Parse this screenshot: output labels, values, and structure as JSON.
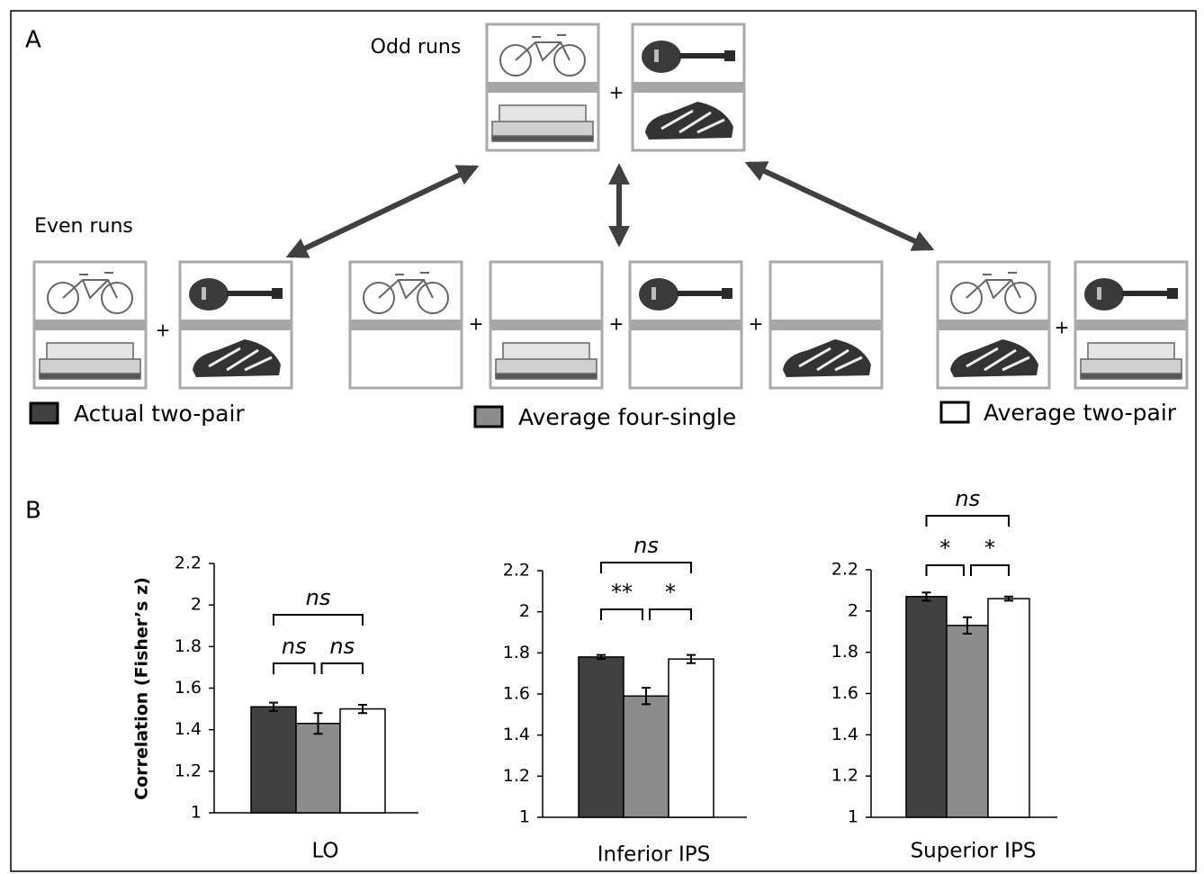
{
  "panel_a": {
    "label": "A",
    "odd_runs": "Odd runs",
    "even_runs": "Even runs",
    "plus_sign": "+"
  },
  "panel_b": {
    "label": "B"
  },
  "chart_data": [
    {
      "type": "bar",
      "title": "LO",
      "ylabel": "Correlation (Fisher’s z)",
      "ylim": [
        1,
        2.2
      ],
      "yticks": [
        1,
        1.2,
        1.4,
        1.6,
        1.8,
        2,
        2.2
      ],
      "series": [
        {
          "name": "Actual two-pair",
          "color": "#404040",
          "values": [
            1.51
          ],
          "errors": [
            0.02
          ]
        },
        {
          "name": "Average four-single",
          "color": "#8c8c8c",
          "values": [
            1.43
          ],
          "errors": [
            0.05
          ]
        },
        {
          "name": "Average two-pair",
          "color": "#ffffff",
          "values": [
            1.5
          ],
          "errors": [
            0.02
          ]
        }
      ],
      "annotations": [
        "ns",
        "ns",
        "ns"
      ]
    },
    {
      "type": "bar",
      "title": "Inferior IPS",
      "ylim": [
        1,
        2.2
      ],
      "yticks": [
        1,
        1.2,
        1.4,
        1.6,
        1.8,
        2,
        2.2
      ],
      "series": [
        {
          "color": "#404040",
          "values": [
            1.78
          ],
          "errors": [
            0.01
          ]
        },
        {
          "color": "#8c8c8c",
          "values": [
            1.59
          ],
          "errors": [
            0.04
          ]
        },
        {
          "color": "#ffffff",
          "values": [
            1.77
          ],
          "errors": [
            0.02
          ]
        }
      ],
      "annotations": [
        "ns",
        "**",
        "*"
      ]
    },
    {
      "type": "bar",
      "title": "Superior IPS",
      "ylim": [
        1,
        2.2
      ],
      "yticks": [
        1,
        1.2,
        1.4,
        1.6,
        1.8,
        2,
        2.2
      ],
      "series": [
        {
          "color": "#404040",
          "values": [
            2.07
          ],
          "errors": [
            0.02
          ]
        },
        {
          "color": "#8c8c8c",
          "values": [
            1.93
          ],
          "errors": [
            0.04
          ]
        },
        {
          "color": "#ffffff",
          "values": [
            2.06
          ],
          "errors": [
            0.01
          ]
        }
      ],
      "annotations": [
        "ns",
        "*",
        "*"
      ]
    }
  ]
}
